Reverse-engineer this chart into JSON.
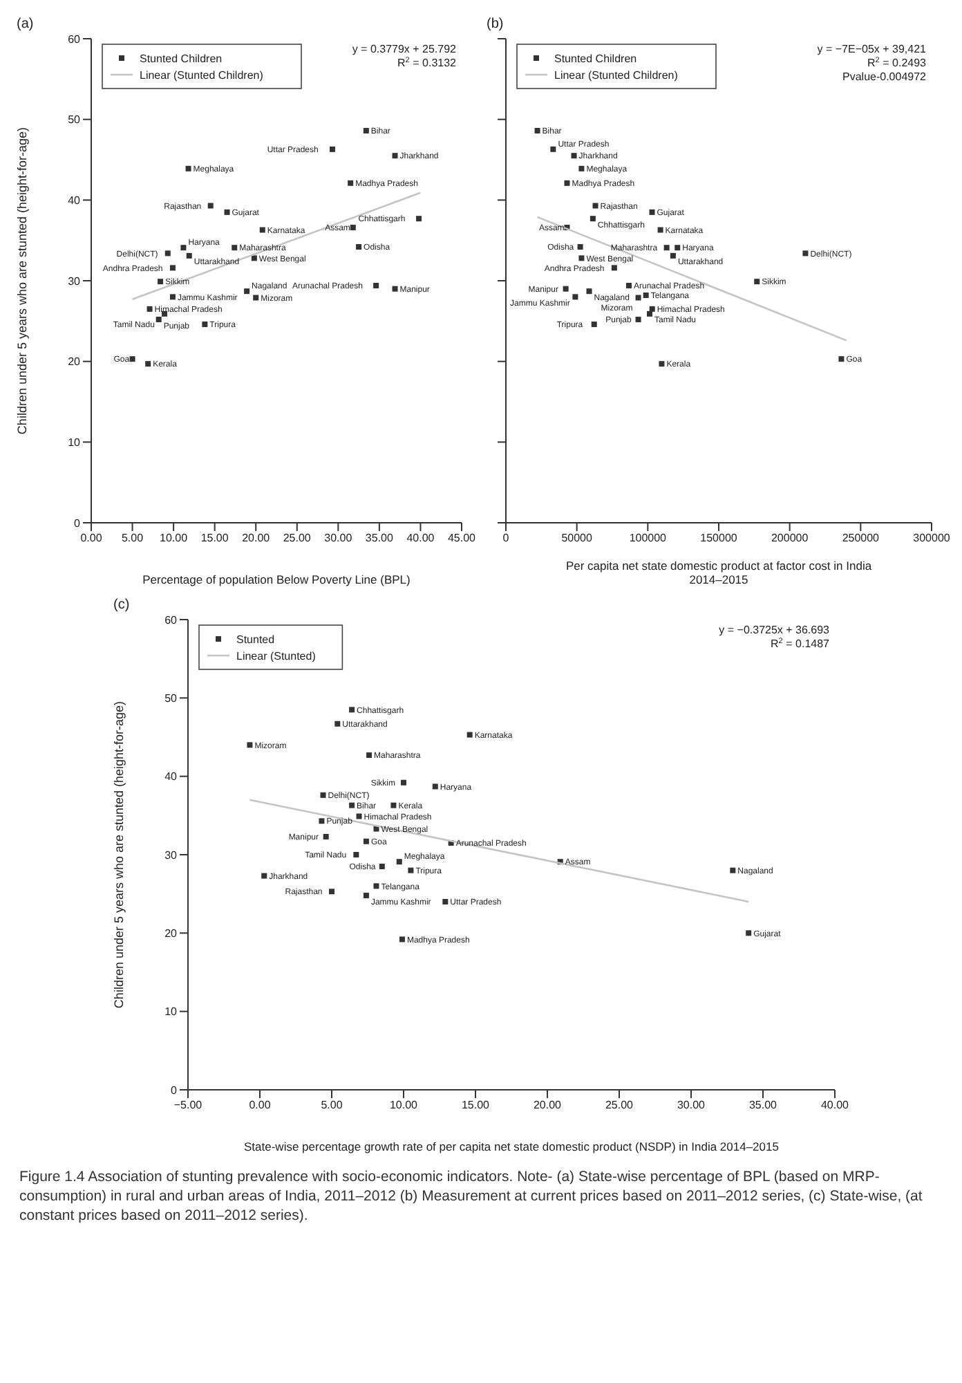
{
  "chart_data": [
    {
      "type": "scatter",
      "title": "(a)",
      "xlabel": "Percentage of population Below Poverty Line (BPL)",
      "ylabel": "Children under 5 years who are stunted (height-for-age)",
      "xlim": [
        0,
        45
      ],
      "xticks": [
        {
          "value": 0,
          "label": "0.00"
        },
        {
          "value": 5,
          "label": "5.00"
        },
        {
          "value": 10,
          "label": "10.00"
        },
        {
          "value": 15,
          "label": "15.00"
        },
        {
          "value": 20,
          "label": "20.00"
        },
        {
          "value": 25,
          "label": "25.00"
        },
        {
          "value": 30,
          "label": "30.00"
        },
        {
          "value": 35,
          "label": "35.00"
        },
        {
          "value": 40,
          "label": "40.00"
        },
        {
          "value": 45,
          "label": "45.00"
        }
      ],
      "ylim": [
        0,
        60
      ],
      "yticks": [
        0,
        10,
        20,
        30,
        40,
        50,
        60
      ],
      "legend": "top left",
      "marker": "square",
      "series": [
        {
          "name": "Stunted Children",
          "color": "#333333",
          "x": [
            33.4,
            29.3,
            36.9,
            31.5,
            39.8,
            31.8,
            32.5,
            34.6,
            36.9,
            11.8,
            14.5,
            16.5,
            20.8,
            17.4,
            19.8,
            11.2,
            11.9,
            9.3,
            9.9,
            8.4,
            9.9,
            7.1,
            8.9,
            8.2,
            13.8,
            18.9,
            20.0,
            5.0,
            6.9
          ],
          "values": [
            48.6,
            46.3,
            45.5,
            42.1,
            37.7,
            36.6,
            34.2,
            29.4,
            29.0,
            43.9,
            39.3,
            38.5,
            36.3,
            34.1,
            32.8,
            34.1,
            33.1,
            33.4,
            31.6,
            29.9,
            28.0,
            26.5,
            25.9,
            25.2,
            24.6,
            28.7,
            27.9,
            20.3,
            19.7
          ]
        },
        {
          "type": "line",
          "name": "Linear (Stunted Children)",
          "color": "#c4c4c4",
          "marker": "none",
          "x": [
            5,
            40
          ],
          "values": [
            27.7,
            40.9
          ]
        }
      ],
      "annotations": [
        "y = 0.3779x + 25.792",
        "R$^{2}$ = 0.3132",
        {
          "text": "Bihar",
          "x": 33.4,
          "y": 48.6
        },
        {
          "text": "Uttar Pradesh",
          "x": 29.3,
          "y": 46.3
        },
        {
          "text": "Jharkhand",
          "x": 36.9,
          "y": 45.5
        },
        {
          "text": "Madhya Pradesh",
          "x": 31.5,
          "y": 42.1
        },
        {
          "text": "Chhattisgarh",
          "x": 39.8,
          "y": 37.7
        },
        {
          "text": "Assam",
          "x": 31.8,
          "y": 36.6
        },
        {
          "text": "Odisha",
          "x": 32.5,
          "y": 34.2
        },
        {
          "text": "Arunachal Pradesh",
          "x": 34.6,
          "y": 29.4
        },
        {
          "text": "Manipur",
          "x": 36.9,
          "y": 29.0
        },
        {
          "text": "Meghalaya",
          "x": 11.8,
          "y": 43.9
        },
        {
          "text": "Rajasthan",
          "x": 14.5,
          "y": 39.3
        },
        {
          "text": "Gujarat",
          "x": 16.5,
          "y": 38.5
        },
        {
          "text": "Karnataka",
          "x": 20.8,
          "y": 36.3
        },
        {
          "text": "Maharashtra",
          "x": 17.4,
          "y": 34.1
        },
        {
          "text": "West Bengal",
          "x": 19.8,
          "y": 32.8
        },
        {
          "text": "Haryana",
          "x": 11.2,
          "y": 34.1
        },
        {
          "text": "Uttarakhand",
          "x": 11.9,
          "y": 33.1
        },
        {
          "text": "Delhi(NCT)",
          "x": 9.3,
          "y": 33.4
        },
        {
          "text": "Andhra Pradesh",
          "x": 9.9,
          "y": 31.6
        },
        {
          "text": "Sikkim",
          "x": 8.4,
          "y": 29.9
        },
        {
          "text": "Jammu Kashmir",
          "x": 9.9,
          "y": 28.0
        },
        {
          "text": "Himachal Pradesh",
          "x": 7.1,
          "y": 26.5
        },
        {
          "text": "Tamil Nadu",
          "x": 8.9,
          "y": 25.9
        },
        {
          "text": "Punjab",
          "x": 8.2,
          "y": 25.2
        },
        {
          "text": "Tripura",
          "x": 13.8,
          "y": 24.6
        },
        {
          "text": "Nagaland",
          "x": 18.9,
          "y": 28.7
        },
        {
          "text": "Mizoram",
          "x": 20.0,
          "y": 27.9
        },
        {
          "text": "Goa",
          "x": 5.0,
          "y": 20.3
        },
        {
          "text": "Kerala",
          "x": 6.9,
          "y": 19.7
        }
      ]
    },
    {
      "type": "scatter",
      "title": "(b)",
      "xlabel": "Per capita net state domestic product at factor cost in India 2014–2015",
      "xlim": [
        0,
        300000
      ],
      "xticks": [
        0,
        50000,
        100000,
        150000,
        200000,
        250000,
        300000
      ],
      "ylim": [
        0,
        60
      ],
      "yticks": [
        0,
        10,
        20,
        30,
        40,
        50,
        60
      ],
      "tick_labels": "x",
      "legend": "top left",
      "marker": "square",
      "series": [
        {
          "name": "Stunted Children",
          "color": "#333333",
          "x": [
            22200,
            33300,
            48000,
            53300,
            43100,
            103000,
            63100,
            61300,
            108900,
            43100,
            113300,
            120900,
            117800,
            52400,
            53300,
            211100,
            176900,
            76400,
            86700,
            42200,
            58700,
            98700,
            48900,
            93300,
            101300,
            103100,
            93300,
            62200,
            109800,
            236400
          ],
          "values": [
            48.6,
            46.3,
            45.5,
            43.9,
            42.1,
            38.5,
            39.3,
            37.7,
            36.3,
            36.6,
            34.1,
            34.1,
            33.1,
            34.2,
            32.8,
            33.4,
            29.9,
            31.6,
            29.4,
            29.0,
            28.7,
            28.2,
            28.0,
            27.9,
            25.9,
            26.5,
            25.2,
            24.6,
            19.7,
            20.3
          ]
        },
        {
          "type": "line",
          "name": "Linear (Stunted Children)",
          "color": "#c4c4c4",
          "marker": "none",
          "x": [
            22200,
            240000
          ],
          "values": [
            37.9,
            22.6
          ]
        }
      ],
      "annotations": [
        "y = −7E−05x + 39,421",
        "R$^{2}$ = 0.2493",
        "Pvalue-0.004972",
        {
          "text": "Bihar",
          "x": 22200,
          "y": 48.6
        },
        {
          "text": "Uttar Pradesh",
          "x": 33300,
          "y": 46.3
        },
        {
          "text": "Jharkhand",
          "x": 48000,
          "y": 45.5
        },
        {
          "text": "Meghalaya",
          "x": 53300,
          "y": 43.9
        },
        {
          "text": "Madhya Pradesh",
          "x": 43100,
          "y": 42.1
        },
        {
          "text": "Gujarat",
          "x": 103000,
          "y": 38.5
        },
        {
          "text": "Rajasthan",
          "x": 63100,
          "y": 39.3
        },
        {
          "text": "Chhattisgarh",
          "x": 61300,
          "y": 37.7
        },
        {
          "text": "Karnataka",
          "x": 108900,
          "y": 36.3
        },
        {
          "text": "Assam",
          "x": 43100,
          "y": 36.6
        },
        {
          "text": "Maharashtra",
          "x": 113300,
          "y": 34.1
        },
        {
          "text": "Haryana",
          "x": 120900,
          "y": 34.1
        },
        {
          "text": "Uttarakhand",
          "x": 117800,
          "y": 33.1
        },
        {
          "text": "Odisha",
          "x": 52400,
          "y": 34.2
        },
        {
          "text": "West Bengal",
          "x": 53300,
          "y": 32.8
        },
        {
          "text": "Delhi(NCT)",
          "x": 211100,
          "y": 33.4
        },
        {
          "text": "Sikkim",
          "x": 176900,
          "y": 29.9
        },
        {
          "text": "Andhra Pradesh",
          "x": 76400,
          "y": 31.6
        },
        {
          "text": "Arunachal Pradesh",
          "x": 86700,
          "y": 29.4
        },
        {
          "text": "Manipur",
          "x": 42200,
          "y": 29.0
        },
        {
          "text": "Nagaland",
          "x": 58700,
          "y": 28.7
        },
        {
          "text": "Telangana",
          "x": 98700,
          "y": 28.2
        },
        {
          "text": "Jammu Kashmir",
          "x": 48900,
          "y": 28.0
        },
        {
          "text": "Mizoram",
          "x": 93300,
          "y": 27.9
        },
        {
          "text": "Tamil Nadu",
          "x": 101300,
          "y": 25.9
        },
        {
          "text": "Himachal Pradesh",
          "x": 103100,
          "y": 26.5
        },
        {
          "text": "Punjab",
          "x": 93300,
          "y": 25.2
        },
        {
          "text": "Tripura",
          "x": 62200,
          "y": 24.6
        },
        {
          "text": "Kerala",
          "x": 109800,
          "y": 19.7
        },
        {
          "text": "Goa",
          "x": 236400,
          "y": 20.3
        }
      ]
    },
    {
      "type": "scatter",
      "title": "(c)",
      "xlabel": "State-wise percentage growth rate of per capita net state domestic product (NSDP) in India 2014–2015",
      "ylabel": "Children under 5 years who are stunted (height-for-age)",
      "xlim": [
        -5,
        40
      ],
      "xticks": [
        {
          "value": -5,
          "label": "−5.00"
        },
        {
          "value": 0,
          "label": "0.00"
        },
        {
          "value": 5,
          "label": "5.00"
        },
        {
          "value": 10,
          "label": "10.00"
        },
        {
          "value": 15,
          "label": "15.00"
        },
        {
          "value": 20,
          "label": "20.00"
        },
        {
          "value": 25,
          "label": "25.00"
        },
        {
          "value": 30,
          "label": "30.00"
        },
        {
          "value": 35,
          "label": "35.00"
        },
        {
          "value": 40,
          "label": "40.00"
        }
      ],
      "ylim": [
        0,
        60
      ],
      "yticks": [
        0,
        10,
        20,
        30,
        40,
        50,
        60
      ],
      "legend": "top left",
      "marker": "square",
      "series": [
        {
          "name": "Stunted",
          "color": "#333333",
          "x": [
            6.4,
            5.4,
            14.6,
            -0.7,
            7.6,
            10.0,
            12.2,
            4.4,
            6.4,
            9.3,
            6.9,
            4.3,
            8.1,
            4.6,
            7.4,
            13.3,
            6.7,
            9.7,
            20.9,
            8.5,
            10.5,
            32.9,
            0.3,
            8.1,
            5.0,
            7.4,
            12.9,
            9.9,
            34.0
          ],
          "values": [
            48.5,
            46.7,
            45.3,
            44.0,
            42.7,
            39.2,
            38.7,
            37.6,
            36.3,
            36.3,
            34.9,
            34.3,
            33.3,
            32.3,
            31.7,
            31.5,
            30.0,
            29.1,
            29.1,
            28.5,
            28.0,
            28.0,
            27.3,
            26.0,
            25.3,
            24.8,
            24.0,
            19.2,
            20.0
          ]
        },
        {
          "type": "line",
          "name": "Linear (Stunted)",
          "color": "#c4c4c4",
          "marker": "none",
          "x": [
            -0.7,
            34
          ],
          "values": [
            37.0,
            24.0
          ]
        }
      ],
      "annotations": [
        "y = −0.3725x + 36.693",
        "R$^{2}$ = 0.1487",
        {
          "text": "Chhattisgarh",
          "x": 6.4,
          "y": 48.5
        },
        {
          "text": "Uttarakhand",
          "x": 5.4,
          "y": 46.7
        },
        {
          "text": "Karnataka",
          "x": 14.6,
          "y": 45.3
        },
        {
          "text": "Mizoram",
          "x": -0.7,
          "y": 44.0
        },
        {
          "text": "Maharashtra",
          "x": 7.6,
          "y": 42.7
        },
        {
          "text": "Sikkim",
          "x": 10.0,
          "y": 39.2
        },
        {
          "text": "Haryana",
          "x": 12.2,
          "y": 38.7
        },
        {
          "text": "Delhi(NCT)",
          "x": 4.4,
          "y": 37.6
        },
        {
          "text": "Bihar",
          "x": 6.4,
          "y": 36.3
        },
        {
          "text": "Kerala",
          "x": 9.3,
          "y": 36.3
        },
        {
          "text": "Himachal Pradesh",
          "x": 6.9,
          "y": 34.9
        },
        {
          "text": "Punjab",
          "x": 4.3,
          "y": 34.3
        },
        {
          "text": "West Bengal",
          "x": 8.1,
          "y": 33.3
        },
        {
          "text": "Manipur",
          "x": 4.6,
          "y": 32.3
        },
        {
          "text": "Goa",
          "x": 7.4,
          "y": 31.7
        },
        {
          "text": "Arunachal Pradesh",
          "x": 13.3,
          "y": 31.5
        },
        {
          "text": "Tamil Nadu",
          "x": 6.7,
          "y": 30.0
        },
        {
          "text": "Meghalaya",
          "x": 9.7,
          "y": 29.1
        },
        {
          "text": "Assam",
          "x": 20.9,
          "y": 29.1
        },
        {
          "text": "Odisha",
          "x": 8.5,
          "y": 28.5
        },
        {
          "text": "Tripura",
          "x": 10.5,
          "y": 28.0
        },
        {
          "text": "Nagaland",
          "x": 32.9,
          "y": 28.0
        },
        {
          "text": "Jharkhand",
          "x": 0.3,
          "y": 27.3
        },
        {
          "text": "Telangana",
          "x": 8.1,
          "y": 26.0
        },
        {
          "text": "Rajasthan",
          "x": 5.0,
          "y": 25.3
        },
        {
          "text": "Jammu Kashmir",
          "x": 7.4,
          "y": 24.8
        },
        {
          "text": "Uttar Pradesh",
          "x": 12.9,
          "y": 24.0
        },
        {
          "text": "Madhya Pradesh",
          "x": 9.9,
          "y": 19.2
        },
        {
          "text": "Gujarat",
          "x": 34.0,
          "y": 20.0
        }
      ]
    },
    {
      "type": "other",
      "annotations": [
        "Figure 1.4 Association of stunting prevalence with socio-economic indicators. Note- (a) State-wise percentage of BPL (based on MRP-consumption) in rural and urban areas of India, 2011–2012 (b) Measurement at current prices based on 2011–2012 series, (c) State-wise, (at constant prices based on 2011–2012 series)."
      ]
    }
  ]
}
